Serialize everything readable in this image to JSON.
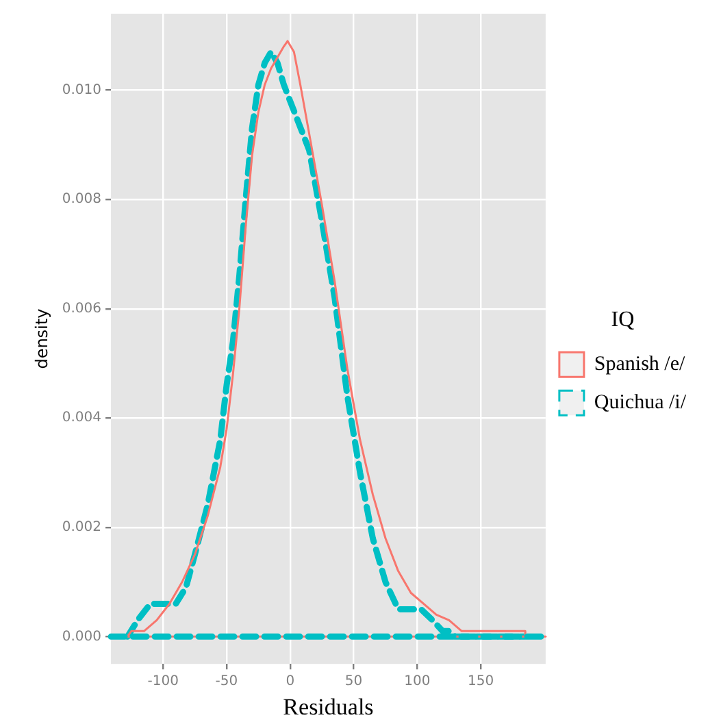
{
  "chart_data": {
    "type": "line",
    "xlabel": "Residuals",
    "ylabel": "density",
    "legend_title": "IQ",
    "legend": "right",
    "grid": true,
    "marker": "none",
    "xlim": [
      -141,
      201
    ],
    "xticks": [
      -100,
      -50,
      0,
      50,
      100,
      150
    ],
    "ylim": [
      -0.0005,
      0.0114
    ],
    "yticks": [
      {
        "value": 0,
        "label": "0.000"
      },
      0.002,
      0.004,
      0.006,
      0.008,
      {
        "value": 0.01,
        "label": "0.010"
      }
    ],
    "ref_lines": [
      {
        "axis": "y",
        "value": 0,
        "color": "#f8766d",
        "line_style": "solid"
      },
      {
        "axis": "y",
        "value": 0,
        "color": "#00bfc4",
        "line_style": "dashed"
      }
    ],
    "series": [
      {
        "name": "Spanish /e/",
        "color": "#f8766d",
        "line_style": "solid",
        "x": [
          -128,
          -125,
          -115,
          -105,
          -95,
          -85,
          -75,
          -65,
          -55,
          -50,
          -45,
          -40,
          -35,
          -30,
          -25,
          -20,
          -15,
          -10,
          -5,
          -2,
          3,
          8,
          15,
          25,
          35,
          45,
          55,
          65,
          75,
          85,
          95,
          105,
          115,
          125,
          135,
          150,
          165,
          180,
          185,
          185
        ],
        "values": [
          0,
          0.0001,
          0.0001,
          0.0003,
          0.0006,
          0.001,
          0.0015,
          0.0022,
          0.0031,
          0.0038,
          0.0048,
          0.006,
          0.0075,
          0.0088,
          0.0096,
          0.0101,
          0.0104,
          0.0106,
          0.0108,
          0.0109,
          0.0107,
          0.0101,
          0.0092,
          0.0079,
          0.0065,
          0.0049,
          0.0036,
          0.0026,
          0.0018,
          0.0012,
          0.0008,
          0.0006,
          0.0004,
          0.0003,
          0.0001,
          0.0001,
          0.0001,
          0.0001,
          0.0001,
          0
        ]
      },
      {
        "name": "Quichua /i/",
        "color": "#00bfc4",
        "line_style": "dashed",
        "x": [
          -128,
          -120,
          -110,
          -100,
          -90,
          -82,
          -75,
          -65,
          -55,
          -50,
          -45,
          -40,
          -35,
          -30,
          -25,
          -20,
          -15,
          -10,
          -5,
          5,
          15,
          25,
          35,
          45,
          55,
          65,
          75,
          85,
          95,
          103,
          112,
          120,
          125,
          130,
          185
        ],
        "values": [
          0,
          0.0003,
          0.0006,
          0.0006,
          0.0006,
          0.0009,
          0.0015,
          0.0024,
          0.0036,
          0.0046,
          0.0054,
          0.0066,
          0.008,
          0.0093,
          0.0101,
          0.0105,
          0.0107,
          0.0105,
          0.0101,
          0.0095,
          0.0089,
          0.0076,
          0.0062,
          0.0044,
          0.003,
          0.0018,
          0.001,
          0.0005,
          0.0005,
          0.0005,
          0.0003,
          0.0001,
          0.0001,
          0,
          0
        ]
      }
    ]
  }
}
